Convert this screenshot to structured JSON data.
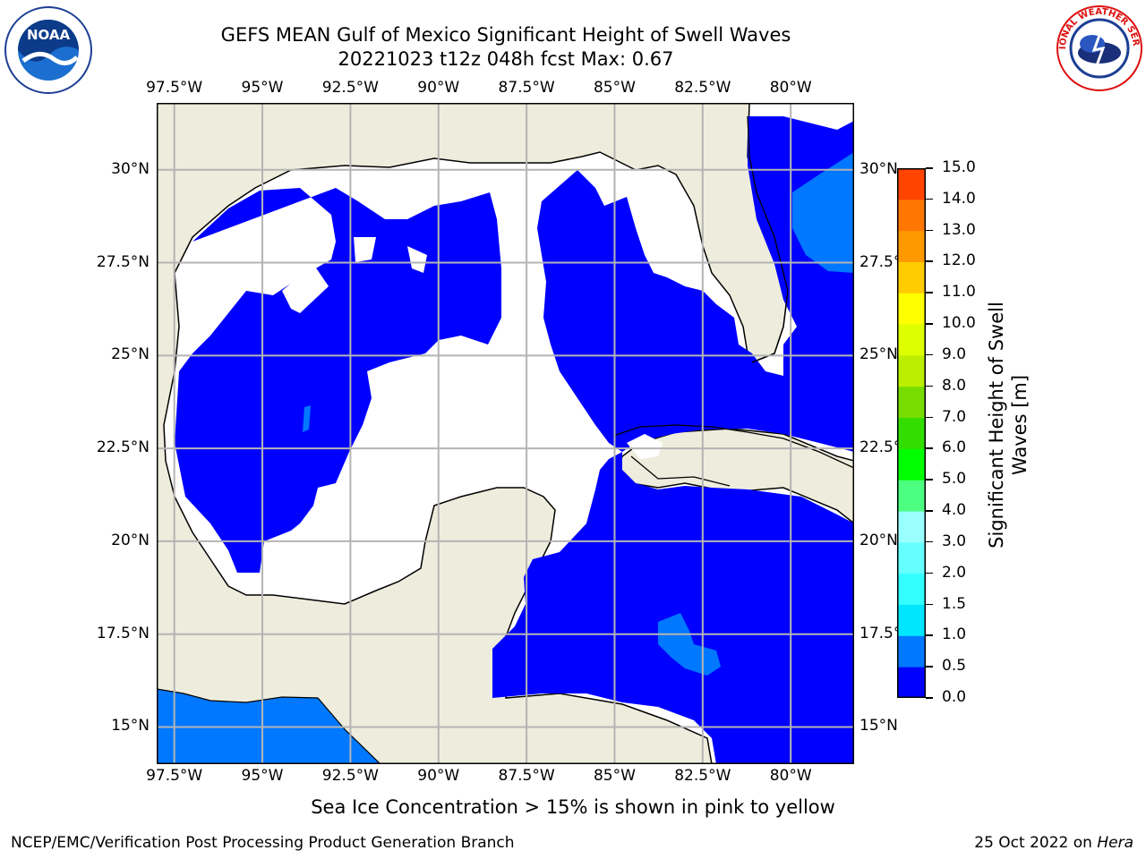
{
  "header": {
    "title_line1": "GEFS MEAN Gulf of Mexico Significant Height of Swell Waves",
    "title_line2": "20221023 t12z 048h fcst   Max: 0.67"
  },
  "logos": {
    "left": "NOAA",
    "right": "NATIONAL WEATHER SERVICE"
  },
  "map": {
    "lon_labels": [
      "97.5°W",
      "95°W",
      "92.5°W",
      "90°W",
      "87.5°W",
      "85°W",
      "82.5°W",
      "80°W"
    ],
    "lon_values": [
      -97.5,
      -95,
      -92.5,
      -90,
      -87.5,
      -85,
      -82.5,
      -80
    ],
    "lat_labels": [
      "30°N",
      "27.5°N",
      "25°N",
      "22.5°N",
      "20°N",
      "17.5°N",
      "15°N"
    ],
    "lat_values": [
      30,
      27.5,
      25,
      22.5,
      20,
      17.5,
      15
    ],
    "lon_range": [
      -98,
      -78.2
    ],
    "lat_range": [
      14,
      31.8
    ],
    "grid": true,
    "colors": {
      "land": "#eeecdc",
      "ocean_zero": "#0000ff",
      "ocean_low": "#0078ff",
      "blank": "#ffffff"
    }
  },
  "colorbar": {
    "label_line1": "Significant Height of Swell",
    "label_line2": "Waves [m]",
    "tick_labels": [
      "0.0",
      "0.5",
      "1.0",
      "1.5",
      "2.0",
      "3.0",
      "4.0",
      "5.0",
      "6.0",
      "7.0",
      "8.0",
      "9.0",
      "10.0",
      "11.0",
      "12.0",
      "13.0",
      "14.0",
      "15.0"
    ],
    "colors": [
      "#0000ff",
      "#0078ff",
      "#00e6ff",
      "#33ffff",
      "#66ffff",
      "#99ffff",
      "#4cff80",
      "#00ff00",
      "#33dd00",
      "#77dd00",
      "#bbee00",
      "#ddff00",
      "#ffff00",
      "#ffcc00",
      "#ff9900",
      "#ff7700",
      "#ff4400",
      "#ff1100"
    ]
  },
  "note": "Sea Ice Concentration > 15% is shown in pink to yellow",
  "footer": {
    "left": "NCEP/EMC/Verification Post Processing Product Generation Branch",
    "right_prefix": "25 Oct 2022 on ",
    "right_italic": "Hera"
  }
}
